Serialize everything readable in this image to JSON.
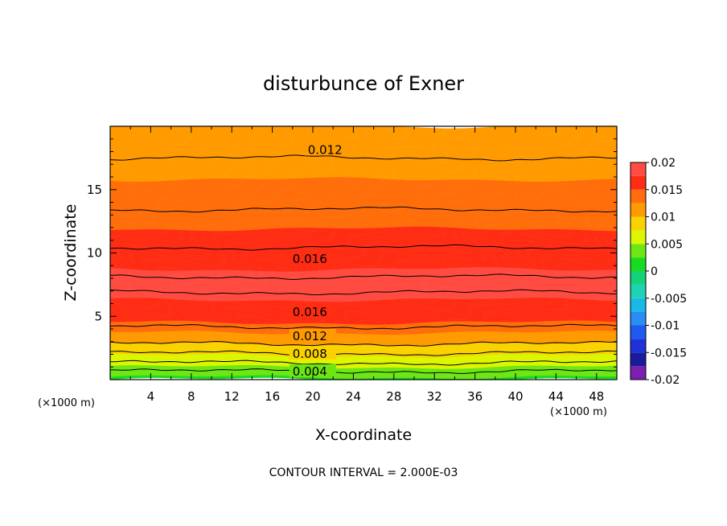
{
  "chart_data": {
    "type": "heatmap",
    "title": "disturbunce of Exner",
    "xlabel": "X-coordinate",
    "ylabel": "Z-coordinate",
    "x_unit": "(×1000 m)",
    "z_unit": "(×1000 m)",
    "xlim": [
      0,
      50
    ],
    "ylim": [
      0,
      20
    ],
    "x_ticks": [
      "4",
      "8",
      "12",
      "16",
      "20",
      "24",
      "28",
      "32",
      "36",
      "40",
      "44",
      "48"
    ],
    "y_ticks": [
      "5",
      "10",
      "15"
    ],
    "footer": "CONTOUR INTERVAL = 2.000E-03",
    "contour_interval": 0.002,
    "field_profile": {
      "z": [
        0,
        0.5,
        1,
        1.5,
        2,
        2.5,
        3,
        3.5,
        4,
        4.5,
        5,
        6,
        7,
        7.5,
        8,
        9,
        10,
        11,
        12,
        13,
        14,
        15,
        16,
        17,
        18,
        19,
        20
      ],
      "value": [
        0.002,
        0.0035,
        0.005,
        0.0065,
        0.0078,
        0.009,
        0.0105,
        0.012,
        0.0135,
        0.015,
        0.016,
        0.0172,
        0.0181,
        0.0184,
        0.0181,
        0.0172,
        0.0163,
        0.0156,
        0.0149,
        0.0143,
        0.0136,
        0.0129,
        0.0124,
        0.0121,
        0.0119,
        0.0118,
        0.0117
      ]
    },
    "contour_labels": [
      {
        "text": "0.012",
        "x": 19.5,
        "z": 18.2
      },
      {
        "text": "0.016",
        "x": 18.0,
        "z": 9.6
      },
      {
        "text": "0.016",
        "x": 18.0,
        "z": 5.4
      },
      {
        "text": "0.012",
        "x": 18.0,
        "z": 3.5
      },
      {
        "text": "0.008",
        "x": 18.0,
        "z": 2.1
      },
      {
        "text": "0.004",
        "x": 18.0,
        "z": 0.7
      }
    ],
    "colorbar": {
      "levels": [
        -0.02,
        -0.0175,
        -0.015,
        -0.0125,
        -0.01,
        -0.0075,
        -0.005,
        -0.0025,
        0,
        0.0025,
        0.005,
        0.0075,
        0.01,
        0.0125,
        0.015,
        0.0175,
        0.02
      ],
      "colors": [
        "#7a1fb0",
        "#1a1a9e",
        "#1e32d8",
        "#1e5af0",
        "#2a8cf5",
        "#19b9e6",
        "#1ed2b4",
        "#14d278",
        "#19dc1e",
        "#6ee614",
        "#dcf500",
        "#fad200",
        "#ff9b00",
        "#ff6e0a",
        "#ff2d14",
        "#ff4b41",
        "#ff7373"
      ],
      "tick_labels": [
        "0.02",
        "0.015",
        "0.01",
        "0.005",
        "0",
        "-0.005",
        "-0.01",
        "-0.015",
        "-0.02"
      ],
      "tick_values": [
        0.02,
        0.015,
        0.01,
        0.005,
        0,
        -0.005,
        -0.01,
        -0.015,
        -0.02
      ]
    }
  }
}
